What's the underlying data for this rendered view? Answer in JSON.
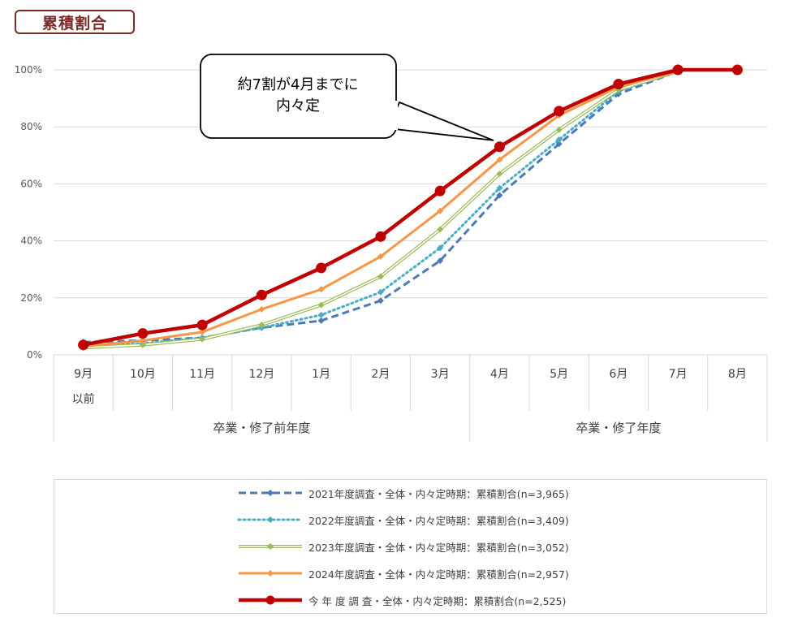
{
  "header": {
    "title": "累積割合"
  },
  "chart_data": {
    "type": "line",
    "x_categories": [
      "9月",
      "10月",
      "11月",
      "12月",
      "1月",
      "2月",
      "3月",
      "4月",
      "5月",
      "6月",
      "7月",
      "8月"
    ],
    "x_category_sublabels": [
      "以前",
      "",
      "",
      "",
      "",
      "",
      "",
      "",
      "",
      "",
      "",
      ""
    ],
    "x_groups": [
      {
        "label": "卒業・修了前年度",
        "categories": [
          "9月",
          "10月",
          "11月",
          "12月",
          "1月",
          "2月",
          "3月"
        ]
      },
      {
        "label": "卒業・修了年度",
        "categories": [
          "4月",
          "5月",
          "6月",
          "7月",
          "8月"
        ]
      }
    ],
    "y_ticks": [
      "0%",
      "20%",
      "40%",
      "60%",
      "80%",
      "100%"
    ],
    "ylim": [
      0,
      100
    ],
    "grid": "horizontal",
    "legend_position": "bottom",
    "series": [
      {
        "name": "2021年度調査・全体・内々定時期：累積割合(n=3,965)",
        "color": "#4a7ab8",
        "style": "dashed",
        "marker": "diamond",
        "values": [
          4.5,
          5,
          6,
          9.5,
          12,
          19,
          33,
          56,
          74,
          91.5,
          99.5,
          null
        ]
      },
      {
        "name": "2022年度調査・全体・内々定時期：累積割合(n=3,409)",
        "color": "#4bacc6",
        "style": "dotted",
        "marker": "diamond",
        "values": [
          3,
          4,
          6,
          9.5,
          14,
          22,
          37.5,
          58.5,
          75.5,
          92.5,
          99.5,
          null
        ]
      },
      {
        "name": "2023年度調査・全体・内々定時期：累積割合(n=3,052)",
        "color": "#9bbb59",
        "style": "double",
        "marker": "diamond",
        "values": [
          2.5,
          3.5,
          5.5,
          10.5,
          17.5,
          27.5,
          44,
          63.5,
          79,
          93,
          99.5,
          null
        ]
      },
      {
        "name": "2024年度調査・全体・内々定時期：累積割合(n=2,957)",
        "color": "#f79646",
        "style": "solid",
        "marker": "diamond",
        "values": [
          3,
          5,
          8,
          16,
          23,
          34.5,
          50.5,
          68.5,
          84,
          94,
          99.5,
          null
        ]
      },
      {
        "name": "今 年 度 調 査・全体・内々定時期：累積割合(n=2,525)",
        "color": "#c00000",
        "style": "thick",
        "marker": "circle",
        "values": [
          3.5,
          7.5,
          10.5,
          21,
          30.5,
          41.5,
          57.5,
          73,
          85.5,
          95,
          100,
          100
        ]
      }
    ],
    "annotation": {
      "lines": [
        "約7割が4月までに",
        "内々定"
      ],
      "points_to": "4月"
    }
  }
}
